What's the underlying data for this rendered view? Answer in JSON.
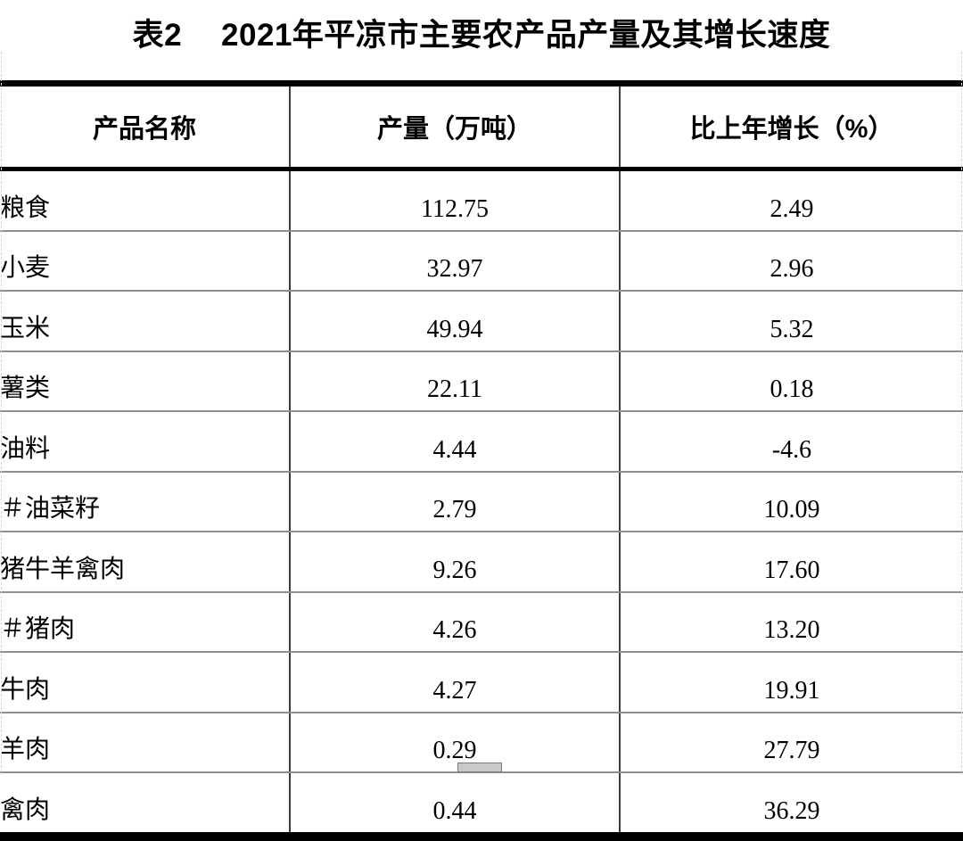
{
  "title": {
    "prefix": "表2",
    "text": "2021年平凉市主要农产品产量及其增长速度"
  },
  "table": {
    "columns": {
      "product": "产品名称",
      "output": "产量（万吨）",
      "growth": "比上年增长（%）"
    },
    "rows": [
      {
        "label": "粮食",
        "output": "112.75",
        "growth": "2.49",
        "level": "1"
      },
      {
        "label": "小麦",
        "output": "32.97",
        "growth": "2.96",
        "level": "2"
      },
      {
        "label": "玉米",
        "output": "49.94",
        "growth": "5.32",
        "level": "2"
      },
      {
        "label": "薯类",
        "output": "22.11",
        "growth": "0.18",
        "level": "2"
      },
      {
        "label": "油料",
        "output": "4.44",
        "growth": "-4.6",
        "level": "1"
      },
      {
        "label": "＃油菜籽",
        "output": "2.79",
        "growth": "10.09",
        "level": "2h"
      },
      {
        "label": "猪牛羊禽肉",
        "output": "9.26",
        "growth": "17.60",
        "level": "1"
      },
      {
        "label": "＃猪肉",
        "output": "4.26",
        "growth": "13.20",
        "level": "3h"
      },
      {
        "label": "牛肉",
        "output": "4.27",
        "growth": "19.91",
        "level": "3"
      },
      {
        "label": "羊肉",
        "output": "0.29",
        "growth": "27.79",
        "level": "3"
      },
      {
        "label": "禽肉",
        "output": "0.44",
        "growth": "36.29",
        "level": "3"
      }
    ]
  },
  "colors": {
    "text": "#000000",
    "border_strong": "#000000",
    "row_divider": "#8f8f8f",
    "column_divider": "#3c3c3c",
    "page_guide": "#d5d5d5",
    "handle_fill": "#c9c9c9"
  }
}
